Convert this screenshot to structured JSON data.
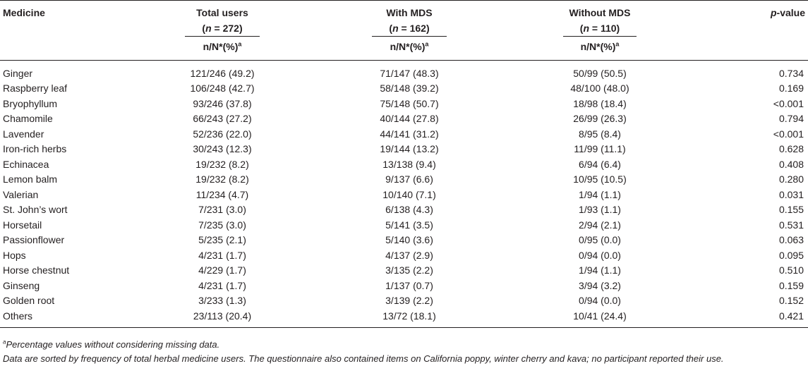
{
  "header": {
    "medicine": "Medicine",
    "total_users": "Total users",
    "total_n": "(n = 272)",
    "with_mds": "With MDS",
    "with_n": "(n = 162)",
    "without_mds": "Without MDS",
    "without_n": "(n = 110)",
    "p_italic": "p",
    "p_rest": "-value",
    "sub_label": "n/N*(%)",
    "sub_sup": "a"
  },
  "rows": [
    {
      "medicine": "Ginger",
      "total": "121/246 (49.2)",
      "with": "71/147 (48.3)",
      "without": "50/99 (50.5)",
      "p": "0.734"
    },
    {
      "medicine": "Raspberry leaf",
      "total": "106/248 (42.7)",
      "with": "58/148 (39.2)",
      "without": "48/100 (48.0)",
      "p": "0.169"
    },
    {
      "medicine": "Bryophyllum",
      "total": "93/246 (37.8)",
      "with": "75/148 (50.7)",
      "without": "18/98 (18.4)",
      "p": "<0.001"
    },
    {
      "medicine": "Chamomile",
      "total": "66/243 (27.2)",
      "with": "40/144 (27.8)",
      "without": "26/99 (26.3)",
      "p": "0.794"
    },
    {
      "medicine": "Lavender",
      "total": "52/236 (22.0)",
      "with": "44/141 (31.2)",
      "without": "8/95 (8.4)",
      "p": "<0.001"
    },
    {
      "medicine": "Iron-rich herbs",
      "total": "30/243 (12.3)",
      "with": "19/144 (13.2)",
      "without": "11/99 (11.1)",
      "p": "0.628"
    },
    {
      "medicine": "Echinacea",
      "total": "19/232 (8.2)",
      "with": "13/138 (9.4)",
      "without": "6/94 (6.4)",
      "p": "0.408"
    },
    {
      "medicine": "Lemon balm",
      "total": "19/232 (8.2)",
      "with": "9/137 (6.6)",
      "without": "10/95 (10.5)",
      "p": "0.280"
    },
    {
      "medicine": "Valerian",
      "total": "11/234 (4.7)",
      "with": "10/140 (7.1)",
      "without": "1/94 (1.1)",
      "p": "0.031"
    },
    {
      "medicine": "St. John’s wort",
      "total": "7/231 (3.0)",
      "with": "6/138 (4.3)",
      "without": "1/93 (1.1)",
      "p": "0.155"
    },
    {
      "medicine": "Horsetail",
      "total": "7/235 (3.0)",
      "with": "5/141 (3.5)",
      "without": "2/94 (2.1)",
      "p": "0.531"
    },
    {
      "medicine": "Passionflower",
      "total": "5/235 (2.1)",
      "with": "5/140 (3.6)",
      "without": "0/95 (0.0)",
      "p": "0.063"
    },
    {
      "medicine": "Hops",
      "total": "4/231 (1.7)",
      "with": "4/137 (2.9)",
      "without": "0/94 (0.0)",
      "p": "0.095"
    },
    {
      "medicine": "Horse chestnut",
      "total": "4/229 (1.7)",
      "with": "3/135 (2.2)",
      "without": "1/94 (1.1)",
      "p": "0.510"
    },
    {
      "medicine": "Ginseng",
      "total": "4/231 (1.7)",
      "with": "1/137 (0.7)",
      "without": "3/94 (3.2)",
      "p": "0.159"
    },
    {
      "medicine": "Golden root",
      "total": "3/233 (1.3)",
      "with": "3/139 (2.2)",
      "without": "0/94 (0.0)",
      "p": "0.152"
    },
    {
      "medicine": "Others",
      "total": "23/113 (20.4)",
      "with": "13/72 (18.1)",
      "without": "10/41 (24.4)",
      "p": "0.421"
    }
  ],
  "footnotes": {
    "note_a_sup": "a",
    "note_a_text": "Percentage values without considering missing data.",
    "note_b": "Data are sorted by frequency of total herbal medicine users. The questionnaire also contained items on California poppy, winter cherry and kava; no participant reported their use."
  }
}
